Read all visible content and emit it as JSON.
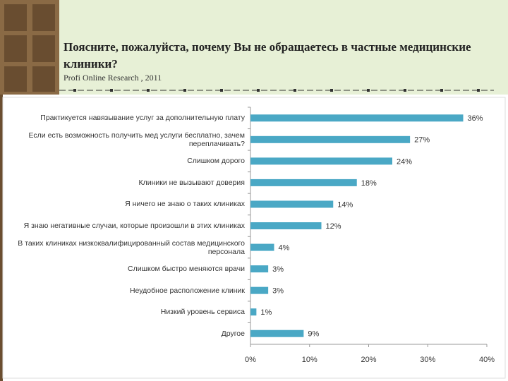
{
  "chart_data": {
    "type": "hbar",
    "title": "Поясните, пожалуйста, почему Вы не обращаетесь в частные медицинские клиники?",
    "subtitle": "Profi Online Research , 2011",
    "categories": [
      "Практикуется навязывание услуг за дополнительную плату",
      "Если есть возможность получить мед услуги бесплатно, зачем переплачивать?",
      "Слишком дорого",
      "Клиники не вызывают доверия",
      "Я ничего не знаю о таких клиниках",
      "Я знаю негативные случаи, которые произошли в этих клиниках",
      "В таких клиниках низкоквалифицированный состав медицинского персонала",
      "Слишком быстро меняются врачи",
      "Неудобное расположение клиник",
      "Низкий уровень сервиса",
      "Другое"
    ],
    "values": [
      36,
      27,
      24,
      18,
      14,
      12,
      4,
      3,
      3,
      1,
      9
    ],
    "value_labels": [
      "36%",
      "27%",
      "24%",
      "18%",
      "14%",
      "12%",
      "4%",
      "3%",
      "3%",
      "1%",
      "9%"
    ],
    "color": "#4aa8c5",
    "xlim": [
      0,
      40
    ],
    "xticks": [
      {
        "value": 0,
        "label": "0%"
      },
      {
        "value": 10,
        "label": "10%"
      },
      {
        "value": 20,
        "label": "20%"
      },
      {
        "value": 30,
        "label": "30%"
      },
      {
        "value": 40,
        "label": "40%"
      }
    ]
  }
}
